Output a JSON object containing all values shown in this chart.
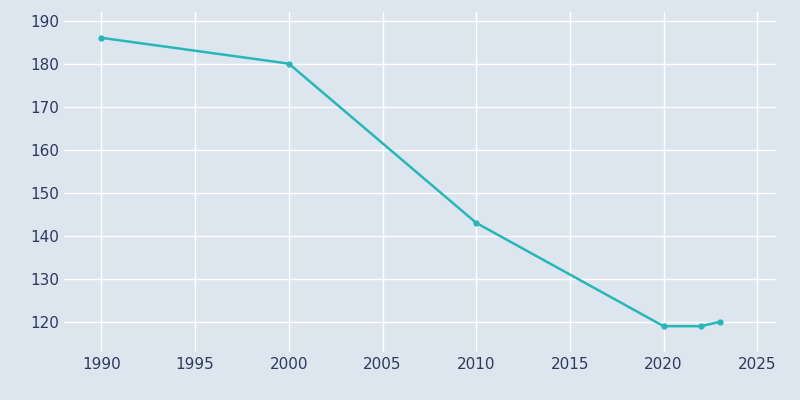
{
  "years": [
    1990,
    2000,
    2010,
    2020,
    2022,
    2023
  ],
  "population": [
    186,
    180,
    143,
    119,
    119,
    120
  ],
  "line_color": "#29B6B8",
  "marker_color": "#29B6B8",
  "axes_facecolor": "#DDE6EF",
  "figure_facecolor": "#DDE6EF",
  "grid_color": "#FFFFFF",
  "tick_color": "#2D3A5B",
  "xlim": [
    1988,
    2026
  ],
  "ylim": [
    113,
    192
  ],
  "yticks": [
    120,
    130,
    140,
    150,
    160,
    170,
    180,
    190
  ],
  "xticks": [
    1990,
    1995,
    2000,
    2005,
    2010,
    2015,
    2020,
    2025
  ],
  "line_width": 1.8,
  "marker_size": 3.5
}
